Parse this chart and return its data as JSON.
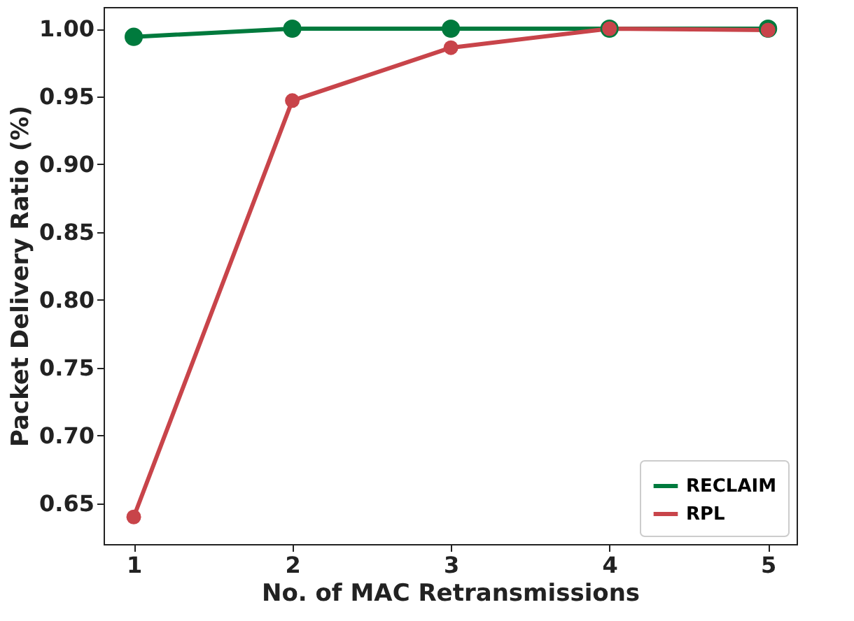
{
  "chart_data": {
    "type": "line",
    "xlabel": "No. of MAC Retransmissions",
    "ylabel": "Packet Delivery Ratio (%)",
    "x": [
      1,
      2,
      3,
      4,
      5
    ],
    "series": [
      {
        "name": "RECLAIM",
        "color": "#007a3d",
        "values": [
          0.994,
          1.0,
          1.0,
          1.0,
          1.0
        ]
      },
      {
        "name": "RPL",
        "color": "#c8444a",
        "values": [
          0.64,
          0.947,
          0.986,
          1.0,
          0.999
        ]
      }
    ],
    "xlim": [
      0.81,
      5.18
    ],
    "xticks": [
      1,
      2,
      3,
      4,
      5
    ],
    "ylim": [
      0.62,
      1.016
    ],
    "yticks": [
      0.65,
      {
        "value": 0.7,
        "label": "0.70"
      },
      0.75,
      {
        "value": 0.8,
        "label": "0.80"
      },
      0.85,
      {
        "value": 0.9,
        "label": "0.90"
      },
      0.95,
      {
        "value": 1.0,
        "label": "1.00"
      }
    ],
    "grid": false,
    "legend": "bottom right",
    "marker": "circle",
    "line_style": "solid"
  }
}
